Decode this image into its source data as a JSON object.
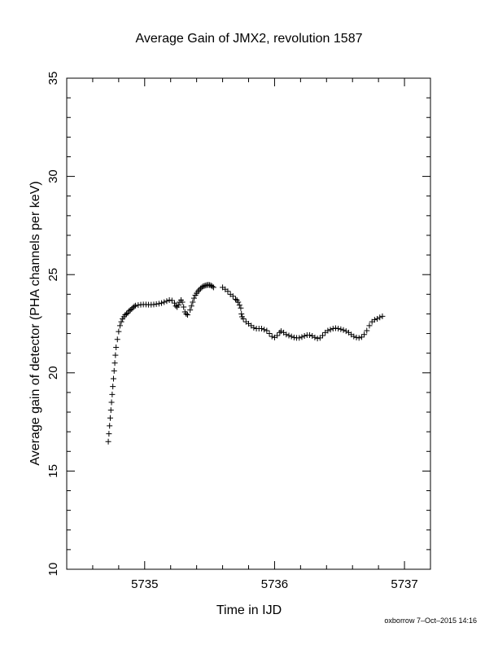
{
  "footer": {
    "credit": "oxborrow  7–Oct–2015 14:16"
  },
  "chart_data": {
    "type": "scatter",
    "title": "Average Gain of JMX2, revolution 1587",
    "xlabel": "Time in IJD",
    "ylabel": "Average gain of detector (PHA channels per keV)",
    "xlim": [
      5734.4,
      5737.2
    ],
    "ylim": [
      10,
      35
    ],
    "xticks": [
      5735,
      5736,
      5737
    ],
    "xtick_labels": [
      "5735",
      "5736",
      "5737"
    ],
    "yticks": [
      10,
      15,
      20,
      25,
      30,
      35
    ],
    "ytick_labels": [
      "10",
      "15",
      "20",
      "25",
      "30",
      "35"
    ],
    "marker": "+",
    "grid": false,
    "series": [
      {
        "points": [
          [
            5734.72,
            16.5
          ],
          [
            5734.725,
            16.9
          ],
          [
            5734.73,
            17.3
          ],
          [
            5734.735,
            17.7
          ],
          [
            5734.74,
            18.1
          ],
          [
            5734.745,
            18.5
          ],
          [
            5734.75,
            18.9
          ],
          [
            5734.755,
            19.3
          ],
          [
            5734.76,
            19.7
          ],
          [
            5734.765,
            20.1
          ],
          [
            5734.77,
            20.5
          ],
          [
            5734.775,
            20.9
          ],
          [
            5734.78,
            21.3
          ],
          [
            5734.79,
            21.7
          ],
          [
            5734.8,
            22.1
          ],
          [
            5734.81,
            22.4
          ],
          [
            5734.82,
            22.6
          ],
          [
            5734.83,
            22.75
          ],
          [
            5734.84,
            22.85
          ],
          [
            5734.85,
            22.95
          ],
          [
            5734.86,
            23.0
          ],
          [
            5734.87,
            23.05
          ],
          [
            5734.88,
            23.15
          ],
          [
            5734.89,
            23.2
          ],
          [
            5734.9,
            23.25
          ],
          [
            5734.91,
            23.32
          ],
          [
            5734.92,
            23.38
          ],
          [
            5734.93,
            23.42
          ],
          [
            5734.95,
            23.45
          ],
          [
            5734.97,
            23.47
          ],
          [
            5734.99,
            23.48
          ],
          [
            5735.01,
            23.48
          ],
          [
            5735.03,
            23.47
          ],
          [
            5735.05,
            23.47
          ],
          [
            5735.07,
            23.48
          ],
          [
            5735.09,
            23.5
          ],
          [
            5735.11,
            23.52
          ],
          [
            5735.13,
            23.55
          ],
          [
            5735.15,
            23.6
          ],
          [
            5735.17,
            23.65
          ],
          [
            5735.19,
            23.7
          ],
          [
            5735.21,
            23.68
          ],
          [
            5735.23,
            23.55
          ],
          [
            5735.24,
            23.4
          ],
          [
            5735.25,
            23.35
          ],
          [
            5735.26,
            23.45
          ],
          [
            5735.27,
            23.6
          ],
          [
            5735.28,
            23.7
          ],
          [
            5735.29,
            23.6
          ],
          [
            5735.3,
            23.35
          ],
          [
            5735.31,
            23.1
          ],
          [
            5735.32,
            23.0
          ],
          [
            5735.33,
            22.95
          ],
          [
            5735.35,
            23.2
          ],
          [
            5735.36,
            23.4
          ],
          [
            5735.37,
            23.6
          ],
          [
            5735.38,
            23.8
          ],
          [
            5735.39,
            23.95
          ],
          [
            5735.4,
            24.05
          ],
          [
            5735.41,
            24.15
          ],
          [
            5735.42,
            24.22
          ],
          [
            5735.43,
            24.3
          ],
          [
            5735.44,
            24.35
          ],
          [
            5735.45,
            24.4
          ],
          [
            5735.46,
            24.43
          ],
          [
            5735.47,
            24.45
          ],
          [
            5735.48,
            24.47
          ],
          [
            5735.49,
            24.48
          ],
          [
            5735.5,
            24.47
          ],
          [
            5735.51,
            24.45
          ],
          [
            5735.52,
            24.4
          ],
          [
            5735.53,
            24.35
          ],
          [
            5735.6,
            24.35
          ],
          [
            5735.62,
            24.25
          ],
          [
            5735.64,
            24.15
          ],
          [
            5735.66,
            24.0
          ],
          [
            5735.68,
            23.9
          ],
          [
            5735.7,
            23.75
          ],
          [
            5735.71,
            23.7
          ],
          [
            5735.72,
            23.6
          ],
          [
            5735.73,
            23.45
          ],
          [
            5735.74,
            23.3
          ],
          [
            5735.745,
            23.0
          ],
          [
            5735.75,
            22.85
          ],
          [
            5735.76,
            22.75
          ],
          [
            5735.78,
            22.6
          ],
          [
            5735.8,
            22.5
          ],
          [
            5735.82,
            22.4
          ],
          [
            5735.84,
            22.3
          ],
          [
            5735.86,
            22.25
          ],
          [
            5735.88,
            22.25
          ],
          [
            5735.9,
            22.25
          ],
          [
            5735.92,
            22.2
          ],
          [
            5735.94,
            22.15
          ],
          [
            5735.96,
            22.0
          ],
          [
            5735.98,
            21.85
          ],
          [
            5736.0,
            21.8
          ],
          [
            5736.02,
            21.9
          ],
          [
            5736.04,
            22.05
          ],
          [
            5736.05,
            22.12
          ],
          [
            5736.07,
            22.05
          ],
          [
            5736.09,
            21.95
          ],
          [
            5736.11,
            21.9
          ],
          [
            5736.13,
            21.85
          ],
          [
            5736.15,
            21.8
          ],
          [
            5736.17,
            21.78
          ],
          [
            5736.19,
            21.78
          ],
          [
            5736.21,
            21.82
          ],
          [
            5736.23,
            21.88
          ],
          [
            5736.25,
            21.92
          ],
          [
            5736.27,
            21.92
          ],
          [
            5736.29,
            21.88
          ],
          [
            5736.31,
            21.8
          ],
          [
            5736.33,
            21.75
          ],
          [
            5736.35,
            21.78
          ],
          [
            5736.37,
            21.9
          ],
          [
            5736.39,
            22.05
          ],
          [
            5736.41,
            22.15
          ],
          [
            5736.43,
            22.2
          ],
          [
            5736.45,
            22.25
          ],
          [
            5736.47,
            22.27
          ],
          [
            5736.49,
            22.25
          ],
          [
            5736.51,
            22.22
          ],
          [
            5736.53,
            22.18
          ],
          [
            5736.55,
            22.12
          ],
          [
            5736.57,
            22.05
          ],
          [
            5736.59,
            21.95
          ],
          [
            5736.61,
            21.85
          ],
          [
            5736.63,
            21.8
          ],
          [
            5736.65,
            21.78
          ],
          [
            5736.67,
            21.82
          ],
          [
            5736.69,
            21.95
          ],
          [
            5736.71,
            22.15
          ],
          [
            5736.73,
            22.4
          ],
          [
            5736.75,
            22.6
          ],
          [
            5736.77,
            22.7
          ],
          [
            5736.79,
            22.75
          ],
          [
            5736.81,
            22.82
          ],
          [
            5736.83,
            22.88
          ]
        ]
      }
    ]
  }
}
